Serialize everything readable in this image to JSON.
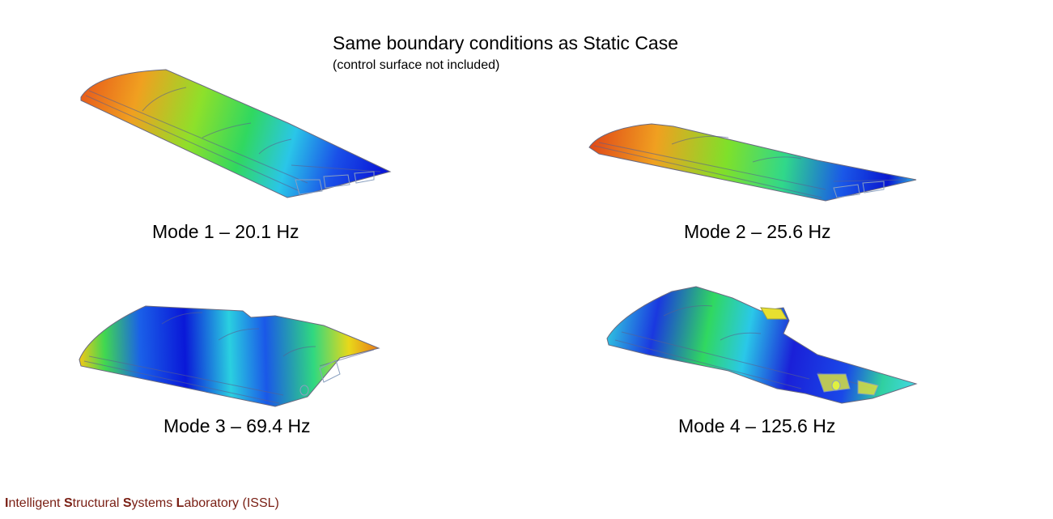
{
  "header": {
    "title": "Same boundary conditions as Static Case",
    "subtitle": "(control surface not included)"
  },
  "modes": [
    {
      "caption": "Mode 1 – 20.1 Hz"
    },
    {
      "caption": "Mode 2 – 25.6 Hz"
    },
    {
      "caption": "Mode 3 – 69.4 Hz"
    },
    {
      "caption": "Mode 4 – 125.6 Hz"
    }
  ],
  "footer": {
    "parts": [
      {
        "bold": "I",
        "rest": "ntelligent "
      },
      {
        "bold": "S",
        "rest": "tructural "
      },
      {
        "bold": "S",
        "rest": "ystems "
      },
      {
        "bold": "L",
        "rest": "aboratory (ISSL)"
      }
    ]
  },
  "colors": {
    "footer_text": "#7a2015",
    "contour_red": "#d9301a",
    "contour_orange": "#f29a1e",
    "contour_yellow": "#e8e31a",
    "contour_green": "#33d14a",
    "contour_cyan": "#2fd6e6",
    "contour_blue": "#1030e0"
  }
}
